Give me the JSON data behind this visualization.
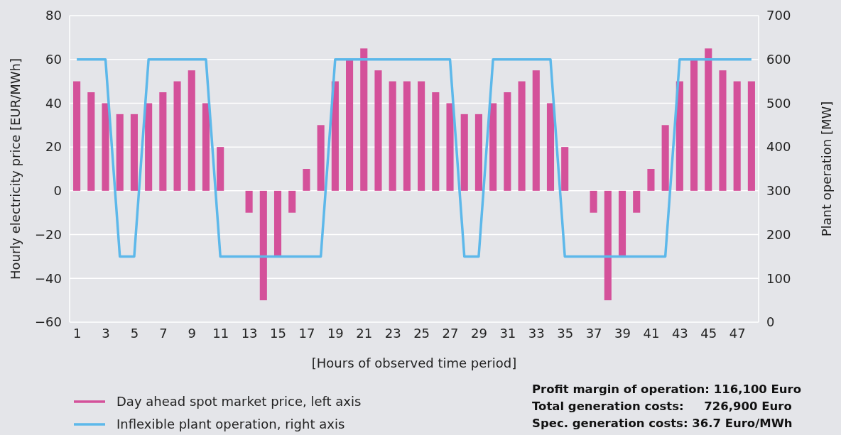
{
  "chart_data": {
    "type": "bar",
    "xlabel": "[Hours of observed time period]",
    "ylabel": "Hourly electricity price [EUR/MWh]",
    "y2label": "Plant operation [MW]",
    "x": [
      1,
      2,
      3,
      4,
      5,
      6,
      7,
      8,
      9,
      10,
      11,
      12,
      13,
      14,
      15,
      16,
      17,
      18,
      19,
      20,
      21,
      22,
      23,
      24,
      25,
      26,
      27,
      28,
      29,
      30,
      31,
      32,
      33,
      34,
      35,
      36,
      37,
      38,
      39,
      40,
      41,
      42,
      43,
      44,
      45,
      46,
      47,
      48
    ],
    "xlim": [
      0.5,
      48.5
    ],
    "xticks": [
      1,
      3,
      5,
      7,
      9,
      11,
      13,
      15,
      17,
      19,
      21,
      23,
      25,
      27,
      29,
      31,
      33,
      35,
      37,
      39,
      41,
      43,
      45,
      47
    ],
    "ylim": [
      -60,
      80
    ],
    "yticks": [
      -60,
      -40,
      -20,
      0,
      20,
      40,
      60,
      80
    ],
    "y2lim": [
      0,
      700
    ],
    "y2ticks": [
      0,
      100,
      200,
      300,
      400,
      500,
      600,
      700
    ],
    "grid": "y",
    "legend": "bottom left",
    "series": [
      {
        "name": "Day ahead spot market price, left axis",
        "color": "#d4519a",
        "values": [
          50,
          45,
          40,
          35,
          35,
          40,
          45,
          50,
          55,
          40,
          20,
          0,
          -10,
          -50,
          -30,
          -10,
          10,
          30,
          50,
          60,
          65,
          55,
          50,
          50,
          50,
          45,
          40,
          35,
          35,
          40,
          45,
          50,
          55,
          40,
          20,
          0,
          -10,
          -50,
          -30,
          -10,
          10,
          30,
          50,
          60,
          65,
          55,
          50,
          50
        ]
      },
      {
        "name": "Inflexible plant operation, right axis",
        "type": "line",
        "axis": "y2",
        "color": "#5db8ea",
        "x": [
          1,
          3,
          4,
          5,
          6,
          10,
          11,
          18,
          19,
          27,
          28,
          29,
          30,
          34,
          35,
          42,
          43,
          48
        ],
        "values": [
          600,
          600,
          150,
          150,
          600,
          600,
          150,
          150,
          600,
          600,
          150,
          150,
          600,
          600,
          150,
          150,
          600,
          600
        ]
      }
    ],
    "annotations": [
      "Profit margin of operation: 116,100 Euro",
      "Total generation costs:     726,900 Euro",
      "Spec. generation costs: 36.7 Euro/MWh"
    ]
  }
}
